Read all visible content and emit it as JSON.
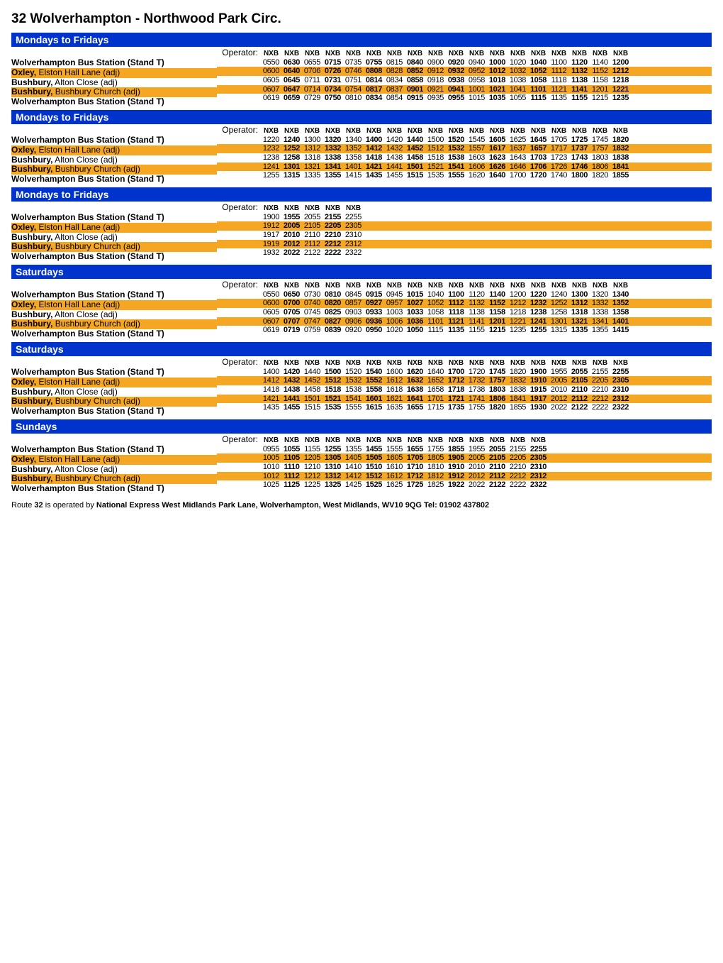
{
  "title": "32 Wolverhampton - Northwood Park Circ.",
  "operator_label": "Operator:",
  "operator_code": "NXB",
  "stops": [
    {
      "b": "Wolverhampton Bus Station (Stand T)",
      "r": ""
    },
    {
      "b": "Oxley,",
      "r": " Elston Hall Lane (adj)"
    },
    {
      "b": "Bushbury,",
      "r": " Alton Close (adj)"
    },
    {
      "b": "Bushbury,",
      "r": " Bushbury Church (adj)"
    },
    {
      "b": "Wolverhampton Bus Station (Stand T)",
      "r": ""
    }
  ],
  "colors": {
    "header_bg": "#0033cc",
    "header_fg": "#ffffff",
    "band_bg": "#f5a623"
  },
  "blocks": [
    {
      "day": "Mondays to Fridays",
      "cols": 18,
      "rows": [
        [
          "0550",
          "0630",
          "0655",
          "0715",
          "0735",
          "0755",
          "0815",
          "0840",
          "0900",
          "0920",
          "0940",
          "1000",
          "1020",
          "1040",
          "1100",
          "1120",
          "1140",
          "1200"
        ],
        [
          "0600",
          "0640",
          "0706",
          "0726",
          "0746",
          "0808",
          "0828",
          "0852",
          "0912",
          "0932",
          "0952",
          "1012",
          "1032",
          "1052",
          "1112",
          "1132",
          "1152",
          "1212"
        ],
        [
          "0605",
          "0645",
          "0711",
          "0731",
          "0751",
          "0814",
          "0834",
          "0858",
          "0918",
          "0938",
          "0958",
          "1018",
          "1038",
          "1058",
          "1118",
          "1138",
          "1158",
          "1218"
        ],
        [
          "0607",
          "0647",
          "0714",
          "0734",
          "0754",
          "0817",
          "0837",
          "0901",
          "0921",
          "0941",
          "1001",
          "1021",
          "1041",
          "1101",
          "1121",
          "1141",
          "1201",
          "1221"
        ],
        [
          "0619",
          "0659",
          "0729",
          "0750",
          "0810",
          "0834",
          "0854",
          "0915",
          "0935",
          "0955",
          "1015",
          "1035",
          "1055",
          "1115",
          "1135",
          "1155",
          "1215",
          "1235"
        ]
      ]
    },
    {
      "day": "Mondays to Fridays",
      "cols": 18,
      "rows": [
        [
          "1220",
          "1240",
          "1300",
          "1320",
          "1340",
          "1400",
          "1420",
          "1440",
          "1500",
          "1520",
          "1545",
          "1605",
          "1625",
          "1645",
          "1705",
          "1725",
          "1745",
          "1820"
        ],
        [
          "1232",
          "1252",
          "1312",
          "1332",
          "1352",
          "1412",
          "1432",
          "1452",
          "1512",
          "1532",
          "1557",
          "1617",
          "1637",
          "1657",
          "1717",
          "1737",
          "1757",
          "1832"
        ],
        [
          "1238",
          "1258",
          "1318",
          "1338",
          "1358",
          "1418",
          "1438",
          "1458",
          "1518",
          "1538",
          "1603",
          "1623",
          "1643",
          "1703",
          "1723",
          "1743",
          "1803",
          "1838"
        ],
        [
          "1241",
          "1301",
          "1321",
          "1341",
          "1401",
          "1421",
          "1441",
          "1501",
          "1521",
          "1541",
          "1606",
          "1626",
          "1646",
          "1706",
          "1726",
          "1746",
          "1806",
          "1841"
        ],
        [
          "1255",
          "1315",
          "1335",
          "1355",
          "1415",
          "1435",
          "1455",
          "1515",
          "1535",
          "1555",
          "1620",
          "1640",
          "1700",
          "1720",
          "1740",
          "1800",
          "1820",
          "1855"
        ]
      ]
    },
    {
      "day": "Mondays to Fridays",
      "cols": 5,
      "rows": [
        [
          "1900",
          "1955",
          "2055",
          "2155",
          "2255"
        ],
        [
          "1912",
          "2005",
          "2105",
          "2205",
          "2305"
        ],
        [
          "1917",
          "2010",
          "2110",
          "2210",
          "2310"
        ],
        [
          "1919",
          "2012",
          "2112",
          "2212",
          "2312"
        ],
        [
          "1932",
          "2022",
          "2122",
          "2222",
          "2322"
        ]
      ]
    },
    {
      "day": "Saturdays",
      "cols": 18,
      "rows": [
        [
          "0550",
          "0650",
          "0730",
          "0810",
          "0845",
          "0915",
          "0945",
          "1015",
          "1040",
          "1100",
          "1120",
          "1140",
          "1200",
          "1220",
          "1240",
          "1300",
          "1320",
          "1340"
        ],
        [
          "0600",
          "0700",
          "0740",
          "0820",
          "0857",
          "0927",
          "0957",
          "1027",
          "1052",
          "1112",
          "1132",
          "1152",
          "1212",
          "1232",
          "1252",
          "1312",
          "1332",
          "1352"
        ],
        [
          "0605",
          "0705",
          "0745",
          "0825",
          "0903",
          "0933",
          "1003",
          "1033",
          "1058",
          "1118",
          "1138",
          "1158",
          "1218",
          "1238",
          "1258",
          "1318",
          "1338",
          "1358"
        ],
        [
          "0607",
          "0707",
          "0747",
          "0827",
          "0906",
          "0936",
          "1006",
          "1036",
          "1101",
          "1121",
          "1141",
          "1201",
          "1221",
          "1241",
          "1301",
          "1321",
          "1341",
          "1401"
        ],
        [
          "0619",
          "0719",
          "0759",
          "0839",
          "0920",
          "0950",
          "1020",
          "1050",
          "1115",
          "1135",
          "1155",
          "1215",
          "1235",
          "1255",
          "1315",
          "1335",
          "1355",
          "1415"
        ]
      ]
    },
    {
      "day": "Saturdays",
      "cols": 18,
      "rows": [
        [
          "1400",
          "1420",
          "1440",
          "1500",
          "1520",
          "1540",
          "1600",
          "1620",
          "1640",
          "1700",
          "1720",
          "1745",
          "1820",
          "1900",
          "1955",
          "2055",
          "2155",
          "2255"
        ],
        [
          "1412",
          "1432",
          "1452",
          "1512",
          "1532",
          "1552",
          "1612",
          "1632",
          "1652",
          "1712",
          "1732",
          "1757",
          "1832",
          "1910",
          "2005",
          "2105",
          "2205",
          "2305"
        ],
        [
          "1418",
          "1438",
          "1458",
          "1518",
          "1538",
          "1558",
          "1618",
          "1638",
          "1658",
          "1718",
          "1738",
          "1803",
          "1838",
          "1915",
          "2010",
          "2110",
          "2210",
          "2310"
        ],
        [
          "1421",
          "1441",
          "1501",
          "1521",
          "1541",
          "1601",
          "1621",
          "1641",
          "1701",
          "1721",
          "1741",
          "1806",
          "1841",
          "1917",
          "2012",
          "2112",
          "2212",
          "2312"
        ],
        [
          "1435",
          "1455",
          "1515",
          "1535",
          "1555",
          "1615",
          "1635",
          "1655",
          "1715",
          "1735",
          "1755",
          "1820",
          "1855",
          "1930",
          "2022",
          "2122",
          "2222",
          "2322"
        ]
      ]
    },
    {
      "day": "Sundays",
      "cols": 14,
      "rows": [
        [
          "0955",
          "1055",
          "1155",
          "1255",
          "1355",
          "1455",
          "1555",
          "1655",
          "1755",
          "1855",
          "1955",
          "2055",
          "2155",
          "2255"
        ],
        [
          "1005",
          "1105",
          "1205",
          "1305",
          "1405",
          "1505",
          "1605",
          "1705",
          "1805",
          "1905",
          "2005",
          "2105",
          "2205",
          "2305"
        ],
        [
          "1010",
          "1110",
          "1210",
          "1310",
          "1410",
          "1510",
          "1610",
          "1710",
          "1810",
          "1910",
          "2010",
          "2110",
          "2210",
          "2310"
        ],
        [
          "1012",
          "1112",
          "1212",
          "1312",
          "1412",
          "1512",
          "1612",
          "1712",
          "1812",
          "1912",
          "2012",
          "2112",
          "2212",
          "2312"
        ],
        [
          "1025",
          "1125",
          "1225",
          "1325",
          "1425",
          "1525",
          "1625",
          "1725",
          "1825",
          "1922",
          "2022",
          "2122",
          "2222",
          "2322"
        ]
      ]
    }
  ],
  "footer_prefix": "Route ",
  "footer_route": "32",
  "footer_mid": " is operated by  ",
  "footer_operator": "National Express West Midlands Park Lane, Wolverhampton, West Midlands, WV10 9QG  Tel: 01902 437802"
}
